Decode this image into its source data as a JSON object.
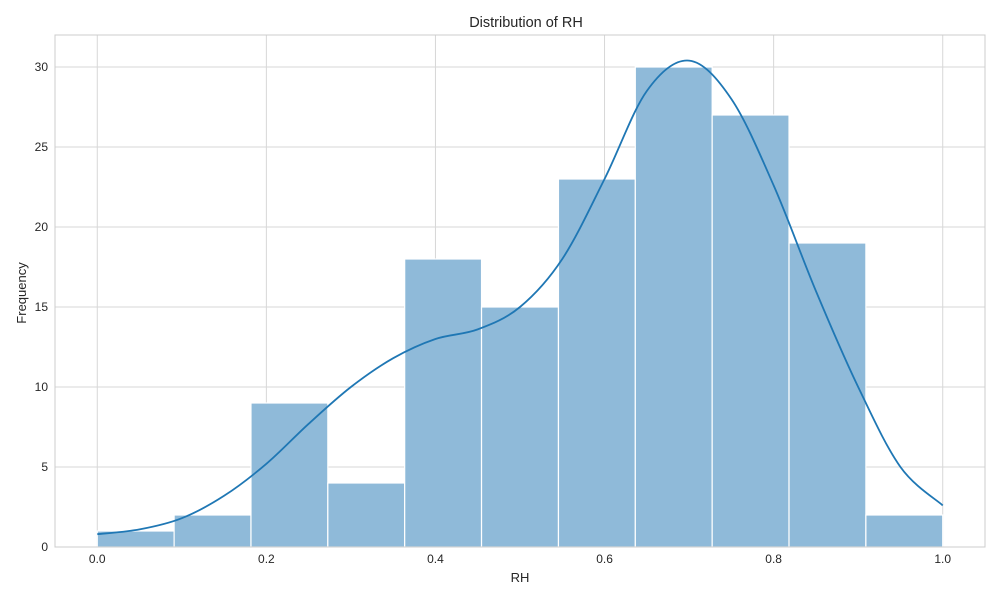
{
  "chart_data": {
    "type": "bar",
    "title": "Distribution of RH",
    "xlabel": "RH",
    "ylabel": "Frequency",
    "xlim": [
      -0.05,
      1.05
    ],
    "ylim": [
      0,
      32
    ],
    "xticks": [
      0.0,
      0.2,
      0.4,
      0.6,
      0.8,
      1.0
    ],
    "xtick_labels": [
      "0.0",
      "0.2",
      "0.4",
      "0.6",
      "0.8",
      "1.0"
    ],
    "yticks": [
      0,
      5,
      10,
      15,
      20,
      25,
      30
    ],
    "ytick_labels": [
      "0",
      "5",
      "10",
      "15",
      "20",
      "25",
      "30"
    ],
    "grid": true,
    "bins": {
      "edges": [
        0.0,
        0.0909,
        0.1818,
        0.2727,
        0.3636,
        0.4545,
        0.5455,
        0.6364,
        0.7273,
        0.8182,
        0.9091,
        1.0
      ],
      "counts": [
        1,
        2,
        9,
        4,
        18,
        15,
        23,
        30,
        27,
        19,
        2
      ]
    },
    "kde": {
      "x": [
        0.0,
        0.05,
        0.1,
        0.15,
        0.2,
        0.25,
        0.3,
        0.35,
        0.4,
        0.45,
        0.5,
        0.55,
        0.6,
        0.65,
        0.7,
        0.75,
        0.8,
        0.85,
        0.9,
        0.95,
        1.0
      ],
      "y": [
        0.8,
        1.1,
        1.8,
        3.2,
        5.2,
        7.7,
        10.0,
        11.8,
        13.0,
        13.6,
        15.0,
        18.0,
        23.0,
        28.5,
        30.4,
        28.0,
        22.6,
        16.0,
        10.0,
        5.0,
        2.6
      ]
    },
    "colors": {
      "bar_fill": "#8fbad9",
      "bar_edge": "#ffffff",
      "kde_line": "#1f77b4",
      "grid": "#d7d7d7",
      "frame": "#cccccc",
      "text": "#262626"
    }
  }
}
